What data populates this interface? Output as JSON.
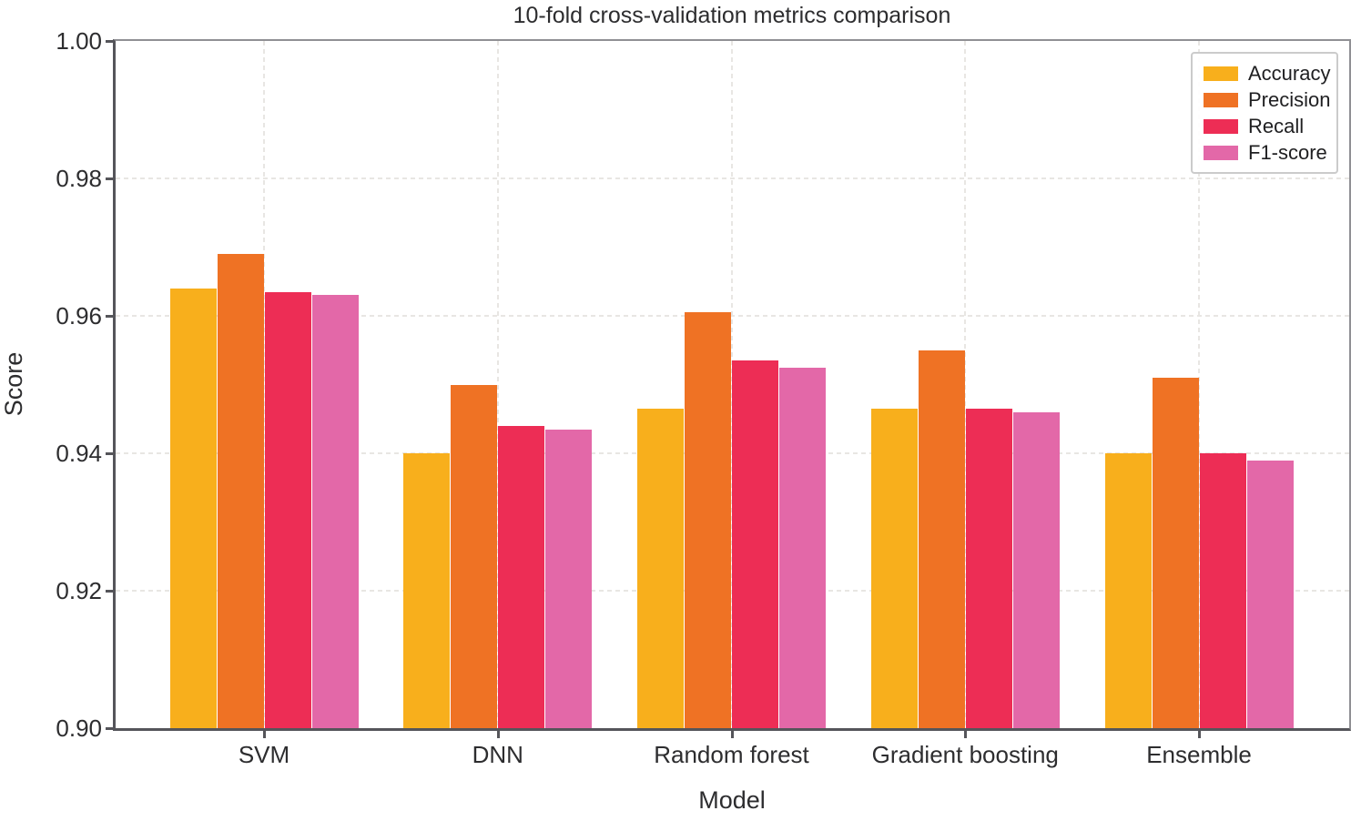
{
  "title": "10-fold cross-validation metrics comparison",
  "chart_data": {
    "type": "bar",
    "title": "10-fold cross-validation metrics comparison",
    "xlabel": "Model",
    "ylabel": "Score",
    "ylim": [
      0.9,
      1.0
    ],
    "yticks": [
      0.9,
      0.92,
      0.94,
      0.96,
      0.98,
      1.0
    ],
    "grid": true,
    "grid_style": "dashed",
    "legend_position": "upper right",
    "categories": [
      "SVM",
      "DNN",
      "Random forest",
      "Gradient boosting",
      "Ensemble"
    ],
    "series": [
      {
        "name": "Accuracy",
        "color": "#F8AF1C",
        "values": [
          0.964,
          0.94,
          0.9465,
          0.9465,
          0.94
        ]
      },
      {
        "name": "Precision",
        "color": "#EF7224",
        "values": [
          0.969,
          0.95,
          0.9605,
          0.955,
          0.951
        ]
      },
      {
        "name": "Recall",
        "color": "#ED2D55",
        "values": [
          0.9635,
          0.944,
          0.9535,
          0.9465,
          0.94
        ]
      },
      {
        "name": "F1-score",
        "color": "#E368A8",
        "values": [
          0.963,
          0.9435,
          0.9525,
          0.946,
          0.939
        ]
      }
    ]
  }
}
